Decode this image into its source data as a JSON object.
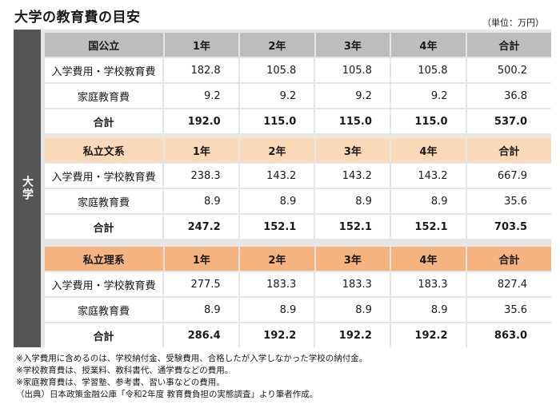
{
  "title": "大学の教育費の目安",
  "unit": "（単位：万円）",
  "side_label": "大学",
  "columns": [
    "1年",
    "2年",
    "3年",
    "4年",
    "合計"
  ],
  "sections": [
    {
      "name": "国公立",
      "header_color": "#bdbdbd",
      "rows": [
        {
          "label": "入学費用・学校教育費",
          "values": [
            "182.8",
            "105.8",
            "105.8",
            "105.8",
            "500.2"
          ]
        },
        {
          "label": "家庭教育費",
          "values": [
            "9.2",
            "9.2",
            "9.2",
            "9.2",
            "36.8"
          ]
        },
        {
          "label": "合計",
          "values": [
            "192.0",
            "115.0",
            "115.0",
            "115.0",
            "537.0"
          ]
        }
      ]
    },
    {
      "name": "私立文系",
      "header_color": "#fbd9b8",
      "rows": [
        {
          "label": "入学費用・学校教育費",
          "values": [
            "238.3",
            "143.2",
            "143.2",
            "143.2",
            "667.9"
          ]
        },
        {
          "label": "家庭教育費",
          "values": [
            "8.9",
            "8.9",
            "8.9",
            "8.9",
            "35.6"
          ]
        },
        {
          "label": "合計",
          "values": [
            "247.2",
            "152.1",
            "152.1",
            "152.1",
            "703.5"
          ]
        }
      ]
    },
    {
      "name": "私立理系",
      "header_color": "#f5b47f",
      "rows": [
        {
          "label": "入学費用・学校教育費",
          "values": [
            "277.5",
            "183.3",
            "183.3",
            "183.3",
            "827.4"
          ]
        },
        {
          "label": "家庭教育費",
          "values": [
            "8.9",
            "8.9",
            "8.9",
            "8.9",
            "35.6"
          ]
        },
        {
          "label": "合計",
          "values": [
            "286.4",
            "192.2",
            "192.2",
            "192.2",
            "863.0"
          ]
        }
      ]
    }
  ],
  "notes": [
    "※入学費用に含めるのは、学校納付金、受験費用、合格したが入学しなかった学校の納付金。",
    "※学校教育費は、授業料、教科書代、通学費などの費用。",
    "※家庭教育費は、学習塾、参考書、習い事などの費用。",
    "（出典）日本政策金融公庫「令和2年度 教育費負担の実態調査」より筆者作成。"
  ]
}
